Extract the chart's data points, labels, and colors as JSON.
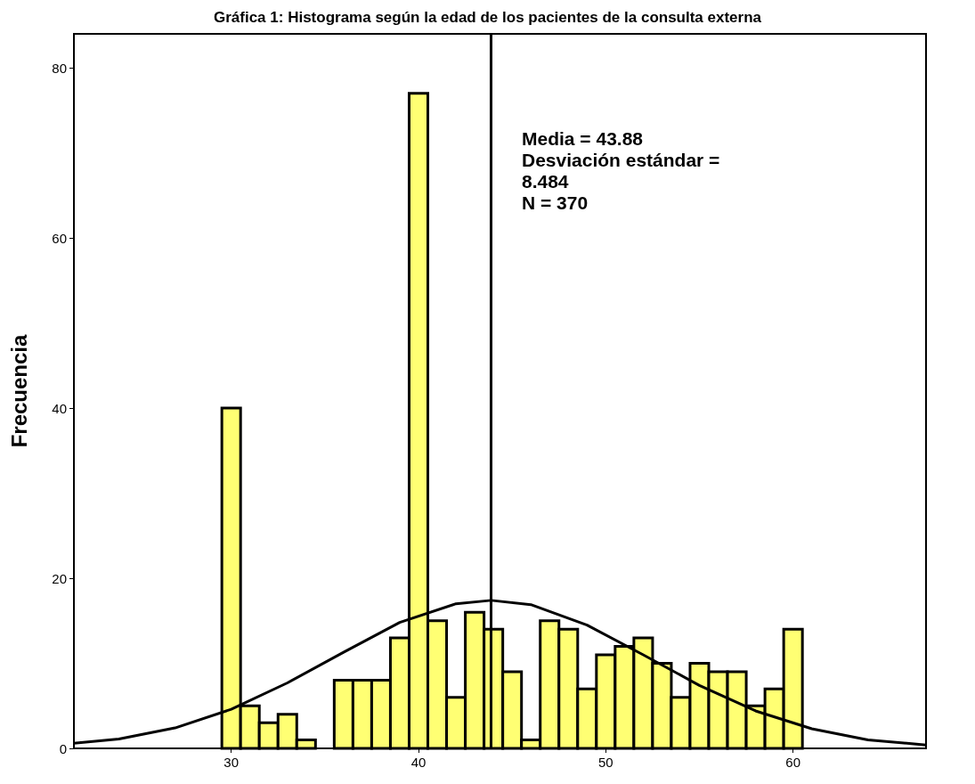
{
  "chart_data": {
    "type": "histogram",
    "title": "Gráfica 1: Histograma según la edad de los pacientes de la consulta externa",
    "ylabel": "Frecuencia",
    "series": [
      {
        "color": "#ffff73",
        "bins": [
          29.5,
          30.5,
          31.5,
          32.5,
          33.5,
          34.5,
          35.5,
          36.5,
          37.5,
          38.5,
          39.5,
          40.5,
          41.5,
          42.5,
          43.5,
          44.5,
          45.5,
          46.5,
          47.5,
          48.5,
          49.5,
          50.5,
          51.5,
          52.5,
          53.5,
          54.5,
          55.5,
          56.5,
          57.5,
          58.5,
          59.5,
          60.5
        ],
        "values": [
          40,
          5,
          3,
          4,
          1,
          0,
          8,
          8,
          8,
          13,
          77,
          15,
          6,
          16,
          14,
          9,
          1,
          15,
          14,
          7,
          11,
          12,
          13,
          10,
          6,
          10,
          9,
          9,
          5,
          7,
          14
        ]
      },
      {
        "type": "line",
        "color": "#000000",
        "x": [
          21.6,
          24,
          27,
          30,
          33,
          36,
          39,
          42,
          43.88,
          46,
          49,
          52,
          55,
          58,
          61,
          64,
          67.1
        ],
        "values": [
          0.6,
          1.1,
          2.4,
          4.6,
          7.7,
          11.3,
          14.8,
          17.0,
          17.4,
          16.9,
          14.5,
          11.0,
          7.4,
          4.4,
          2.3,
          1.0,
          0.4
        ]
      }
    ],
    "ref_lines": [
      {
        "axis": "x",
        "value": 43.88,
        "color": "#000000"
      }
    ],
    "annotations": [
      "Media = 43.88\nDesviación estándar =\n8.484\nN = 370"
    ],
    "xlim": [
      21.6,
      67.1
    ],
    "xticks": [
      30,
      40,
      50,
      60
    ],
    "ylim": [
      0,
      84
    ],
    "yticks": [
      0,
      20,
      40,
      60,
      80
    ],
    "grid": false,
    "marker": "none"
  }
}
